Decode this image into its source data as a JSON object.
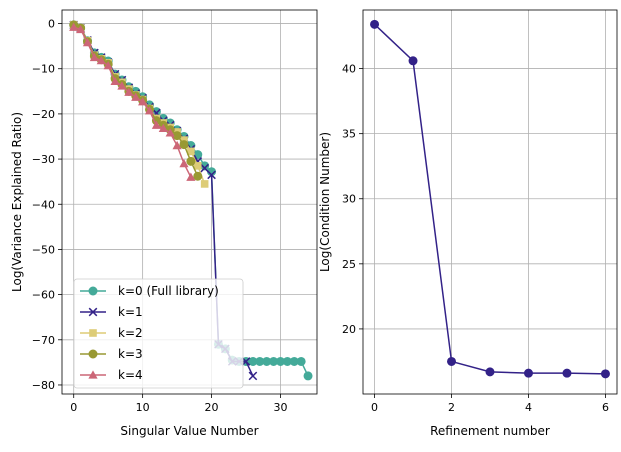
{
  "chart_data": [
    {
      "type": "line",
      "xlabel": "Singular Value Number",
      "ylabel": "Log(Variance Explained Ratio)",
      "xlim": [
        -1.7,
        35.3
      ],
      "ylim": [
        -82,
        3
      ],
      "xticks": [
        0,
        10,
        20,
        30
      ],
      "yticks": [
        0,
        -10,
        -20,
        -30,
        -40,
        -50,
        -60,
        -70,
        -80
      ],
      "grid": true,
      "legend_position": "lower-left",
      "series": [
        {
          "name": "k=0 (Full library)",
          "color": "#44aa99",
          "marker": "circle",
          "x": [
            0,
            1,
            2,
            3,
            4,
            5,
            6,
            7,
            8,
            9,
            10,
            11,
            12,
            13,
            14,
            15,
            16,
            17,
            18,
            19,
            20,
            21,
            22,
            23,
            24,
            25,
            26,
            27,
            28,
            29,
            30,
            31,
            32,
            33,
            34
          ],
          "y": [
            -0.3,
            -1,
            -3.8,
            -6.5,
            -7.5,
            -8.3,
            -11.2,
            -12.5,
            -14,
            -15,
            -16.2,
            -18,
            -19.5,
            -21,
            -22,
            -23.5,
            -25,
            -27,
            -29,
            -31.5,
            -32.8,
            -71,
            -72,
            -74.5,
            -74.8,
            -74.8,
            -74.8,
            -74.8,
            -74.8,
            -74.8,
            -74.8,
            -74.8,
            -74.8,
            -74.8,
            -78
          ]
        },
        {
          "name": "k=1",
          "color": "#332288",
          "marker": "x",
          "x": [
            0,
            1,
            2,
            3,
            4,
            5,
            6,
            7,
            8,
            9,
            10,
            11,
            12,
            13,
            14,
            15,
            16,
            17,
            18,
            19,
            20,
            21,
            22,
            23,
            24,
            25,
            26
          ],
          "y": [
            -0.3,
            -1,
            -3.7,
            -6.5,
            -7.5,
            -8.6,
            -11.2,
            -12.5,
            -14.2,
            -15.5,
            -16.5,
            -18.5,
            -19.8,
            -21.5,
            -22.5,
            -23.8,
            -25.5,
            -27.8,
            -30.5,
            -32,
            -33.5,
            -71,
            -72,
            -74.8,
            -74.8,
            -74.8,
            -78
          ]
        },
        {
          "name": "k=2",
          "color": "#ddcc77",
          "marker": "square",
          "x": [
            0,
            1,
            2,
            3,
            4,
            5,
            6,
            7,
            8,
            9,
            10,
            11,
            12,
            13,
            14,
            15,
            16,
            17,
            18,
            19
          ],
          "y": [
            -0.3,
            -1,
            -3.8,
            -7,
            -7.8,
            -8.7,
            -11.8,
            -13,
            -14.5,
            -15.8,
            -16.8,
            -18.8,
            -21,
            -22,
            -23,
            -24,
            -25.8,
            -28.3,
            -31.5,
            -35.5
          ]
        },
        {
          "name": "k=3",
          "color": "#999933",
          "marker": "circle",
          "x": [
            0,
            1,
            2,
            3,
            4,
            5,
            6,
            7,
            8,
            9,
            10,
            11,
            12,
            13,
            14,
            15,
            16,
            17,
            18
          ],
          "y": [
            -0.3,
            -1,
            -4,
            -7.2,
            -8,
            -9,
            -12.2,
            -13.5,
            -15,
            -16,
            -17,
            -19,
            -21.5,
            -22.5,
            -23.5,
            -24.8,
            -26.8,
            -30.5,
            -33.8
          ]
        },
        {
          "name": "k=4",
          "color": "#cc6677",
          "marker": "triangle",
          "x": [
            0,
            1,
            2,
            3,
            4,
            5,
            6,
            7,
            8,
            9,
            10,
            11,
            12,
            13,
            14,
            15,
            16,
            17
          ],
          "y": [
            -0.8,
            -1.3,
            -4.2,
            -7.5,
            -8.2,
            -9.3,
            -12.8,
            -13.8,
            -15.2,
            -16.3,
            -17.3,
            -19.3,
            -22.5,
            -23.2,
            -24.2,
            -27,
            -31,
            -34
          ]
        }
      ]
    },
    {
      "type": "line",
      "xlabel": "Refinement number",
      "ylabel": "Log(Condition Number)",
      "xlim": [
        -0.3,
        6.3
      ],
      "ylim": [
        15,
        44.5
      ],
      "xticks": [
        0,
        2,
        4,
        6
      ],
      "yticks": [
        20,
        25,
        30,
        35,
        40
      ],
      "grid": true,
      "series": [
        {
          "color": "#332288",
          "marker": "circle",
          "x": [
            0,
            1,
            2,
            3,
            4,
            5,
            6
          ],
          "y": [
            43.4,
            40.6,
            17.5,
            16.7,
            16.6,
            16.6,
            16.55
          ]
        }
      ]
    }
  ]
}
